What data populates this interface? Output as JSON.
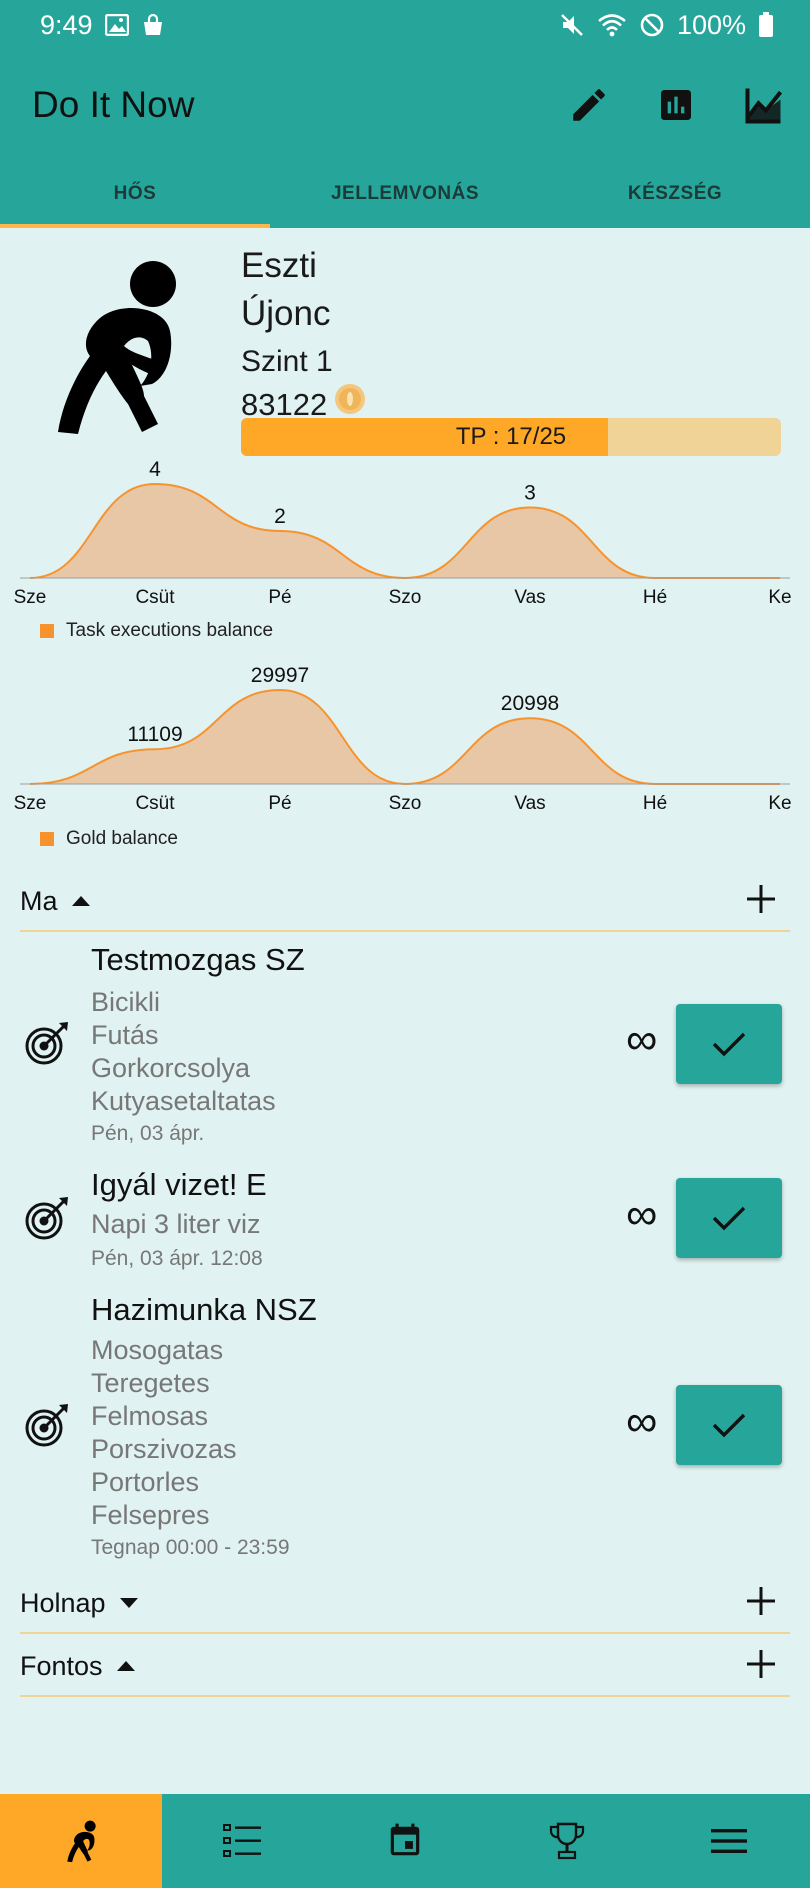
{
  "status_bar": {
    "time": "9:49",
    "battery": "100%"
  },
  "app": {
    "title": "Do It Now"
  },
  "tabs": [
    {
      "label": "HŐS",
      "active": true
    },
    {
      "label": "JELLEMVONÁS",
      "active": false
    },
    {
      "label": "KÉSZSÉG",
      "active": false
    }
  ],
  "hero": {
    "name": "Eszti",
    "rank": "Újonc",
    "level": "Szint 1",
    "gold": "83122",
    "tp_label": "TP : 17/25",
    "tp_fraction": 0.68
  },
  "chart_data": [
    {
      "type": "area",
      "categories": [
        "Sze",
        "Csüt",
        "Pé",
        "Szo",
        "Vas",
        "Hé",
        "Ke"
      ],
      "series": [
        {
          "name": "Task executions balance",
          "values": [
            0,
            4,
            2,
            0,
            3,
            0,
            0
          ]
        }
      ],
      "data_labels": [
        "",
        "4",
        "2",
        "",
        "3",
        "",
        ""
      ],
      "legend": "bottom-left",
      "color": "#f7932d"
    },
    {
      "type": "area",
      "categories": [
        "Sze",
        "Csüt",
        "Pé",
        "Szo",
        "Vas",
        "Hé",
        "Ke"
      ],
      "series": [
        {
          "name": "Gold balance",
          "values": [
            0,
            11109,
            29997,
            0,
            20998,
            0,
            0
          ]
        }
      ],
      "data_labels": [
        "",
        "11109",
        "29997",
        "",
        "20998",
        "",
        ""
      ],
      "legend": "bottom-left",
      "color": "#f7932d"
    }
  ],
  "sections": {
    "today": {
      "title": "Ma",
      "expanded": true
    },
    "tomorrow": {
      "title": "Holnap",
      "expanded": false
    },
    "important": {
      "title": "Fontos",
      "expanded": true
    }
  },
  "tasks": [
    {
      "title": "Testmozgas SZ",
      "subtasks": [
        "Bicikli",
        "Futás",
        "Gorkorcsolya",
        "Kutyasetaltatas"
      ],
      "date": "Pén, 03 ápr.",
      "repeat": "∞"
    },
    {
      "title": "Igyál vizet! E",
      "subtasks": [
        "Napi 3 liter viz"
      ],
      "date": "Pén, 03 ápr. 12:08",
      "repeat": "∞"
    },
    {
      "title": "Hazimunka NSZ",
      "subtasks": [
        "Mosogatas",
        "Teregetes",
        "Felmosas",
        "Porszivozas",
        "Portorles",
        "Felsepres"
      ],
      "date": "Tegnap 00:00 - 23:59",
      "repeat": "∞"
    }
  ],
  "accent_colors": {
    "primary": "#26a69a",
    "accent": "#ffa726",
    "background": "#e0f2f1"
  }
}
